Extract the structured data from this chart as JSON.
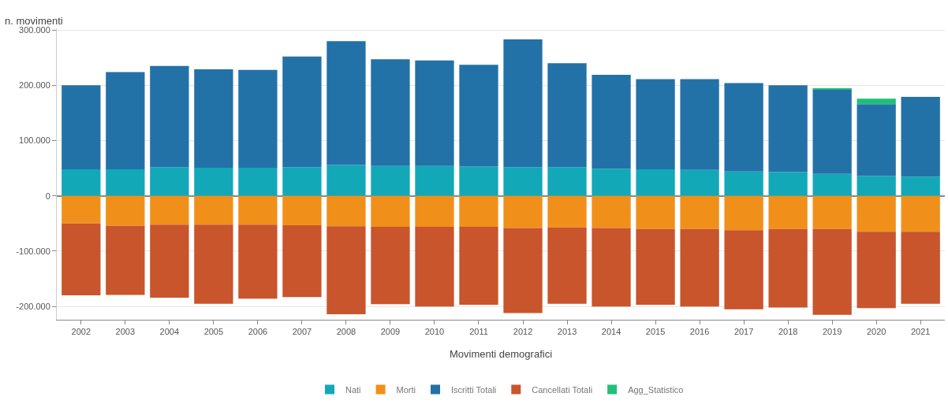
{
  "chart_data": {
    "type": "bar",
    "stacked": true,
    "xlabel": "Movimenti demografici",
    "ylabel": "n. movimenti",
    "categories": [
      "2002",
      "2003",
      "2004",
      "2005",
      "2006",
      "2007",
      "2008",
      "2009",
      "2010",
      "2011",
      "2012",
      "2013",
      "2014",
      "2015",
      "2016",
      "2017",
      "2018",
      "2019",
      "2020",
      "2021"
    ],
    "series": [
      {
        "name": "Nati",
        "color": "#12a8b8",
        "values": [
          48000,
          48000,
          52000,
          51000,
          51000,
          52000,
          56000,
          54000,
          54000,
          53000,
          52000,
          52000,
          49000,
          48000,
          47000,
          44000,
          43000,
          40000,
          36000,
          35000
        ]
      },
      {
        "name": "Morti",
        "color": "#f0901a",
        "values": [
          -50000,
          -54000,
          -52000,
          -52000,
          -52000,
          -53000,
          -55000,
          -56000,
          -56000,
          -56000,
          -58000,
          -57000,
          -58000,
          -60000,
          -60000,
          -62000,
          -60000,
          -60000,
          -65000,
          -65000
        ]
      },
      {
        "name": "Iscritti Totali",
        "color": "#2272a8",
        "values": [
          152000,
          176000,
          183000,
          178000,
          177000,
          200000,
          224000,
          193000,
          191000,
          184000,
          231000,
          188000,
          170000,
          163000,
          164000,
          160000,
          157000,
          153000,
          130000,
          144000
        ]
      },
      {
        "name": "Cancellati Totali",
        "color": "#c8552c",
        "values": [
          -130000,
          -125000,
          -132000,
          -143000,
          -134000,
          -130000,
          -159000,
          -140000,
          -144000,
          -141000,
          -154000,
          -138000,
          -142000,
          -137000,
          -140000,
          -143000,
          -142000,
          -155000,
          -138000,
          -130000
        ]
      },
      {
        "name": "Agg_Statistico",
        "color": "#20c07a",
        "values": [
          null,
          null,
          null,
          null,
          null,
          null,
          null,
          null,
          null,
          null,
          null,
          null,
          null,
          null,
          null,
          null,
          null,
          1000,
          10000,
          null
        ]
      }
    ],
    "ylim": [
      -224000,
      303000
    ],
    "yticks": [
      {
        "value": -200000,
        "label": "-200.000"
      },
      {
        "value": -100000,
        "label": "-100.000"
      },
      0,
      {
        "value": 100000,
        "label": "100.000"
      },
      {
        "value": 200000,
        "label": "200.000"
      },
      {
        "value": 300000,
        "label": "300.000"
      }
    ],
    "grid": "y",
    "legend": "bottom"
  }
}
